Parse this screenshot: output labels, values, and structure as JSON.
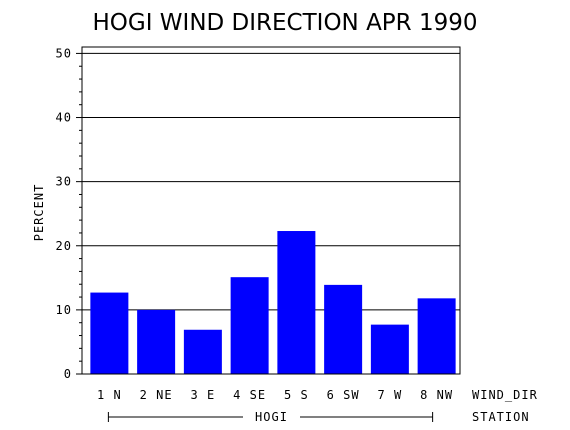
{
  "chart_data": {
    "type": "bar",
    "title": "HOGI WIND DIRECTION APR 1990",
    "ylabel": "PERCENT",
    "xlabel": "WIND_DIR",
    "group_label": "STATION",
    "group_name": "HOGI",
    "categories": [
      "1 N",
      "2 NE",
      "3 E",
      "4 SE",
      "5 S",
      "6 SW",
      "7 W",
      "8 NW"
    ],
    "values": [
      12.7,
      10.0,
      6.9,
      15.1,
      22.3,
      13.9,
      7.7,
      11.8
    ],
    "ylim": [
      0,
      51
    ],
    "yticks": [
      "0",
      "10",
      "20",
      "30",
      "40",
      "50"
    ],
    "grid": true,
    "bar_color": "#0000ff"
  }
}
